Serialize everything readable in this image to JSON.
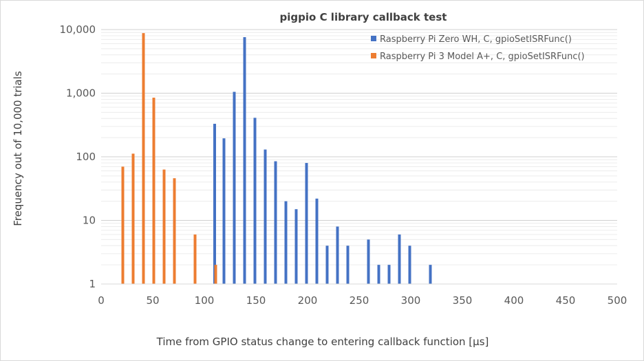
{
  "chart_data": {
    "type": "bar",
    "title": "pigpio C library callback test",
    "xlabel": "Time from GPIO status change to entering callback function [µs]",
    "ylabel": "Frequency out of  10,000 trials",
    "xlim": [
      0,
      500
    ],
    "ylim": [
      1,
      10000
    ],
    "yscale": "log",
    "x_ticks": [
      "0",
      "50",
      "100",
      "150",
      "200",
      "250",
      "300",
      "350",
      "400",
      "450",
      "500"
    ],
    "x_tick_values": [
      0,
      50,
      100,
      150,
      200,
      250,
      300,
      350,
      400,
      450,
      500
    ],
    "y_ticks": [
      "1",
      "10",
      "100",
      "1,000",
      "10,000"
    ],
    "y_tick_values": [
      1,
      10,
      100,
      1000,
      10000
    ],
    "grid": true,
    "legend_position": "top-right",
    "series": [
      {
        "name": "Raspberry Pi Zero WH, C, gpioSetISRFunc()",
        "color": "#4472c4",
        "x": [
          110,
          119,
          129,
          139,
          149,
          159,
          169,
          179,
          189,
          199,
          209,
          219,
          229,
          239,
          249,
          259,
          269,
          279,
          289,
          299,
          309,
          319,
          329,
          339,
          349,
          359,
          369,
          379,
          389,
          399,
          409,
          419,
          429,
          439,
          449,
          459,
          469,
          479,
          489,
          499
        ],
        "values": [
          330,
          195,
          1050,
          7600,
          410,
          130,
          85,
          20,
          15,
          80,
          22,
          4,
          8,
          4,
          1,
          5,
          2,
          2,
          6,
          4,
          1,
          2,
          1,
          1,
          1,
          1,
          1,
          1,
          1,
          1,
          1,
          1,
          1,
          1,
          1,
          1,
          1,
          1,
          1,
          1
        ]
      },
      {
        "name": "Raspberry Pi 3 Model A+, C, gpioSetISRFunc()",
        "color": "#ed7d31",
        "x": [
          21,
          31,
          41,
          51,
          61,
          71,
          81,
          91,
          101,
          111
        ],
        "values": [
          70,
          112,
          8800,
          850,
          63,
          46,
          1,
          6,
          1,
          2
        ]
      }
    ]
  }
}
